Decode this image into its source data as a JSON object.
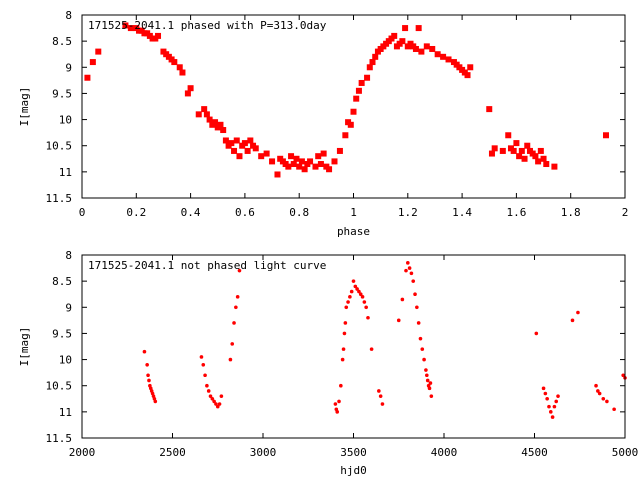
{
  "colors": {
    "points": "#ff0000",
    "axes": "#000000",
    "background": "#ffffff"
  },
  "chart_data": [
    {
      "type": "scatter",
      "title": "171525-2041.1 phased with P=313.0day",
      "xlabel": "phase",
      "ylabel": "I[mag]",
      "xlim": [
        0,
        2
      ],
      "ylim": [
        11.5,
        8
      ],
      "y_inverted": true,
      "x_ticks": [
        "0",
        "0.2",
        "0.4",
        "0.6",
        "0.8",
        "1",
        "1.2",
        "1.4",
        "1.6",
        "1.8",
        "2"
      ],
      "y_ticks": [
        "8",
        "8.5",
        "9",
        "9.5",
        "10",
        "10.5",
        "11",
        "11.5"
      ],
      "marker": "filled-square",
      "series": [
        {
          "x": [
            0.02,
            0.04,
            0.06,
            0.16,
            0.18,
            0.2,
            0.21,
            0.22,
            0.23,
            0.24,
            0.25,
            0.26,
            0.27,
            0.28,
            0.3,
            0.31,
            0.32,
            0.33,
            0.34,
            0.36,
            0.37,
            0.39,
            0.4,
            0.43,
            0.45,
            0.46,
            0.47,
            0.48,
            0.49,
            0.5,
            0.51,
            0.52,
            0.53,
            0.54,
            0.55,
            0.56,
            0.57,
            0.58,
            0.59,
            0.6,
            0.61,
            0.62,
            0.63,
            0.64,
            0.66,
            0.68,
            0.7,
            0.72,
            0.73,
            0.74,
            0.75,
            0.76,
            0.77,
            0.78,
            0.79,
            0.8,
            0.81,
            0.82,
            0.83,
            0.84,
            0.86,
            0.87,
            0.88,
            0.89,
            0.9,
            0.91,
            0.93,
            0.95,
            0.97,
            0.98,
            0.99,
            1.0,
            1.01,
            1.02,
            1.03,
            1.05,
            1.06,
            1.07,
            1.08,
            1.09,
            1.1,
            1.11,
            1.12,
            1.13,
            1.14,
            1.15,
            1.16,
            1.17,
            1.18,
            1.19,
            1.2,
            1.21,
            1.22,
            1.23,
            1.24,
            1.25,
            1.27,
            1.29,
            1.31,
            1.33,
            1.35,
            1.37,
            1.38,
            1.39,
            1.4,
            1.41,
            1.42,
            1.43,
            1.5,
            1.51,
            1.52,
            1.55,
            1.57,
            1.58,
            1.59,
            1.6,
            1.61,
            1.62,
            1.63,
            1.64,
            1.65,
            1.66,
            1.67,
            1.68,
            1.69,
            1.7,
            1.71,
            1.74,
            1.93
          ],
          "y": [
            9.2,
            8.9,
            8.7,
            8.2,
            8.25,
            8.25,
            8.3,
            8.3,
            8.35,
            8.35,
            8.4,
            8.45,
            8.45,
            8.4,
            8.7,
            8.75,
            8.8,
            8.85,
            8.9,
            9.0,
            9.1,
            9.5,
            9.4,
            9.9,
            9.8,
            9.9,
            10.0,
            10.1,
            10.05,
            10.15,
            10.1,
            10.2,
            10.4,
            10.5,
            10.45,
            10.6,
            10.4,
            10.7,
            10.5,
            10.45,
            10.6,
            10.4,
            10.5,
            10.55,
            10.7,
            10.65,
            10.8,
            11.05,
            10.75,
            10.8,
            10.85,
            10.9,
            10.7,
            10.85,
            10.75,
            10.9,
            10.8,
            10.95,
            10.85,
            10.8,
            10.9,
            10.7,
            10.85,
            10.65,
            10.9,
            10.95,
            10.8,
            10.6,
            10.3,
            10.05,
            10.1,
            9.85,
            9.6,
            9.45,
            9.3,
            9.2,
            9.0,
            8.9,
            8.8,
            8.7,
            8.65,
            8.6,
            8.55,
            8.5,
            8.45,
            8.4,
            8.6,
            8.55,
            8.5,
            8.25,
            8.6,
            8.55,
            8.6,
            8.65,
            8.25,
            8.7,
            8.6,
            8.65,
            8.75,
            8.8,
            8.85,
            8.9,
            8.95,
            9.0,
            9.05,
            9.1,
            9.15,
            9.0,
            9.8,
            10.65,
            10.55,
            10.6,
            10.3,
            10.55,
            10.6,
            10.45,
            10.7,
            10.6,
            10.75,
            10.5,
            10.6,
            10.65,
            10.7,
            10.8,
            10.6,
            10.75,
            10.85,
            10.9,
            10.3
          ]
        }
      ]
    },
    {
      "type": "scatter",
      "title": "171525-2041.1 not phased light curve",
      "xlabel": "hjd0",
      "ylabel": "I[mag]",
      "xlim": [
        2000,
        5000
      ],
      "ylim": [
        11.5,
        8
      ],
      "y_inverted": true,
      "x_ticks": [
        "2000",
        "2500",
        "3000",
        "3500",
        "4000",
        "4500",
        "5000"
      ],
      "y_ticks": [
        "8",
        "8.5",
        "9",
        "9.5",
        "10",
        "10.5",
        "11",
        "11.5"
      ],
      "marker": "small-dot",
      "series": [
        {
          "x": [
            2345,
            2360,
            2365,
            2370,
            2375,
            2380,
            2385,
            2390,
            2395,
            2400,
            2405,
            2660,
            2670,
            2680,
            2690,
            2700,
            2710,
            2720,
            2730,
            2740,
            2750,
            2760,
            2770,
            2820,
            2830,
            2840,
            2850,
            2860,
            2870,
            3400,
            3405,
            3410,
            3420,
            3430,
            3440,
            3445,
            3450,
            3455,
            3460,
            3470,
            3480,
            3490,
            3500,
            3510,
            3520,
            3530,
            3540,
            3550,
            3560,
            3570,
            3580,
            3600,
            3640,
            3650,
            3660,
            3750,
            3770,
            3790,
            3800,
            3810,
            3820,
            3830,
            3840,
            3850,
            3860,
            3870,
            3880,
            3890,
            3900,
            3905,
            3910,
            3915,
            3920,
            3925,
            3930,
            4510,
            4550,
            4560,
            4570,
            4580,
            4590,
            4600,
            4610,
            4620,
            4630,
            4710,
            4740,
            4840,
            4850,
            4860,
            4880,
            4900,
            4940,
            4990,
            5000
          ],
          "y": [
            9.85,
            10.1,
            10.3,
            10.4,
            10.5,
            10.55,
            10.6,
            10.65,
            10.7,
            10.75,
            10.8,
            9.95,
            10.1,
            10.3,
            10.5,
            10.6,
            10.7,
            10.75,
            10.8,
            10.85,
            10.9,
            10.85,
            10.7,
            10.0,
            9.7,
            9.3,
            9.0,
            8.8,
            8.3,
            10.85,
            10.95,
            11.0,
            10.8,
            10.5,
            10.0,
            9.8,
            9.5,
            9.3,
            9.0,
            8.9,
            8.8,
            8.7,
            8.5,
            8.6,
            8.65,
            8.7,
            8.75,
            8.8,
            8.9,
            9.0,
            9.2,
            9.8,
            10.6,
            10.7,
            10.85,
            9.25,
            8.85,
            8.3,
            8.15,
            8.25,
            8.35,
            8.5,
            8.75,
            9.0,
            9.3,
            9.6,
            9.8,
            10.0,
            10.2,
            10.3,
            10.4,
            10.5,
            10.55,
            10.45,
            10.7,
            9.5,
            10.55,
            10.65,
            10.75,
            10.9,
            11.0,
            11.1,
            10.9,
            10.8,
            10.7,
            9.25,
            9.1,
            10.5,
            10.6,
            10.65,
            10.75,
            10.8,
            10.95,
            10.3,
            10.35
          ]
        }
      ]
    }
  ]
}
